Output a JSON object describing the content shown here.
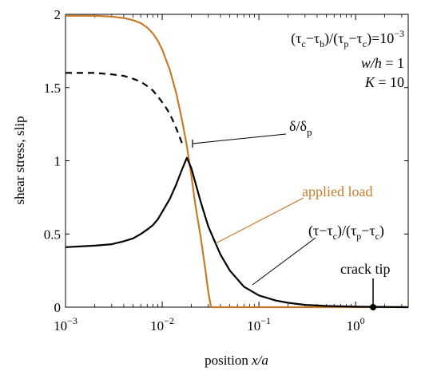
{
  "colors": {
    "applied_load": "#c87c2a",
    "stress": "#000000",
    "slip": "#000000"
  },
  "chart_data": {
    "type": "line",
    "xscale": "log",
    "xlim": [
      0.001,
      3.5
    ],
    "ylim": [
      0,
      2
    ],
    "xlabel": {
      "prefix": "position ",
      "var": "x/a"
    },
    "ylabel": "shear stress, slip",
    "x_ticks": [
      {
        "value": 0.001,
        "base": "10",
        "exp": "−3"
      },
      {
        "value": 0.01,
        "base": "10",
        "exp": "−2"
      },
      {
        "value": 0.1,
        "base": "10",
        "exp": "−1"
      },
      {
        "value": 1,
        "base": "10",
        "exp": "0"
      }
    ],
    "y_ticks": [
      {
        "value": 0,
        "label": "0"
      },
      {
        "value": 0.5,
        "label": "0.5"
      },
      {
        "value": 1,
        "label": "1"
      },
      {
        "value": 1.5,
        "label": "1.5"
      },
      {
        "value": 2,
        "label": "2"
      }
    ],
    "series": [
      {
        "name": "applied load",
        "style": "solid",
        "color": "#c87c2a",
        "points": [
          [
            0.001,
            1.99
          ],
          [
            0.002,
            1.99
          ],
          [
            0.003,
            1.985
          ],
          [
            0.004,
            1.975
          ],
          [
            0.005,
            1.96
          ],
          [
            0.006,
            1.94
          ],
          [
            0.007,
            1.91
          ],
          [
            0.008,
            1.87
          ],
          [
            0.009,
            1.82
          ],
          [
            0.01,
            1.76
          ],
          [
            0.012,
            1.62
          ],
          [
            0.014,
            1.46
          ],
          [
            0.016,
            1.28
          ],
          [
            0.018,
            1.1
          ],
          [
            0.02,
            0.9
          ],
          [
            0.022,
            0.7
          ],
          [
            0.025,
            0.48
          ],
          [
            0.028,
            0.25
          ],
          [
            0.03,
            0.1
          ],
          [
            0.032,
            0.0
          ],
          [
            0.1,
            0.0
          ],
          [
            1,
            0.0
          ],
          [
            3.5,
            0.0
          ]
        ]
      },
      {
        "name": "δ/δp",
        "style": "dashed",
        "color": "#000000",
        "points": [
          [
            0.001,
            1.6
          ],
          [
            0.002,
            1.6
          ],
          [
            0.003,
            1.59
          ],
          [
            0.004,
            1.58
          ],
          [
            0.005,
            1.56
          ],
          [
            0.006,
            1.54
          ],
          [
            0.007,
            1.51
          ],
          [
            0.008,
            1.48
          ],
          [
            0.009,
            1.44
          ],
          [
            0.01,
            1.4
          ],
          [
            0.011,
            1.36
          ],
          [
            0.012,
            1.32
          ],
          [
            0.013,
            1.27
          ],
          [
            0.014,
            1.22
          ],
          [
            0.015,
            1.17
          ],
          [
            0.016,
            1.12
          ]
        ]
      },
      {
        "name": "(τ−τc)/(τp−τc)",
        "style": "solid",
        "color": "#000000",
        "points": [
          [
            0.001,
            0.41
          ],
          [
            0.002,
            0.42
          ],
          [
            0.003,
            0.43
          ],
          [
            0.004,
            0.45
          ],
          [
            0.005,
            0.47
          ],
          [
            0.006,
            0.5
          ],
          [
            0.007,
            0.53
          ],
          [
            0.008,
            0.56
          ],
          [
            0.009,
            0.6
          ],
          [
            0.01,
            0.65
          ],
          [
            0.012,
            0.74
          ],
          [
            0.014,
            0.84
          ],
          [
            0.016,
            0.94
          ],
          [
            0.018,
            1.02
          ],
          [
            0.02,
            0.95
          ],
          [
            0.025,
            0.72
          ],
          [
            0.03,
            0.55
          ],
          [
            0.04,
            0.36
          ],
          [
            0.05,
            0.25
          ],
          [
            0.07,
            0.14
          ],
          [
            0.1,
            0.08
          ],
          [
            0.15,
            0.045
          ],
          [
            0.2,
            0.03
          ],
          [
            0.3,
            0.016
          ],
          [
            0.5,
            0.008
          ],
          [
            1,
            0.003
          ],
          [
            3.5,
            0.0
          ]
        ]
      }
    ],
    "annotations": {
      "params": {
        "line1": {
          "t1": "(τ",
          "s1": "c",
          "t2": "−τ",
          "s2": "b",
          "t3": ")/(τ",
          "s3": "p",
          "t4": "−τ",
          "s4": "c",
          "t5": ")=10",
          "sup": "−3"
        },
        "line2": {
          "var": "w/h",
          "rest": " = 1"
        },
        "line3": {
          "var": "K",
          "rest": " = 10"
        }
      },
      "slip_label": {
        "t1": "δ/δ",
        "sub": "p"
      },
      "applied_load_label": "applied load",
      "stress_label": {
        "t1": "(τ−τ",
        "s1": "c",
        "t2": ")/(τ",
        "s2": "p",
        "t3": "−τ",
        "s3": "c",
        "t4": ")"
      },
      "crack_tip_label": "crack tip",
      "crack_tip": {
        "x": 1,
        "y": 0
      }
    }
  }
}
